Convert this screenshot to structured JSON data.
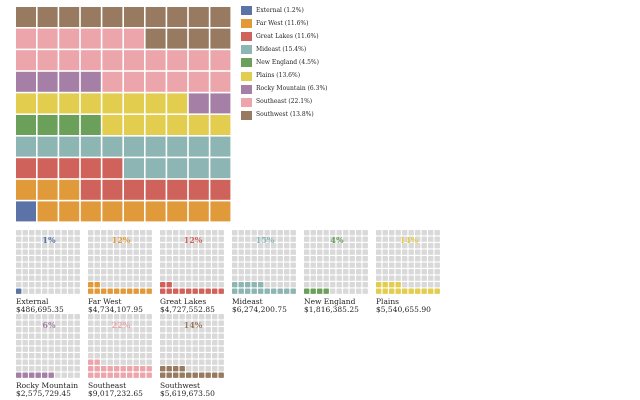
{
  "chart_data": [
    {
      "type": "waffle",
      "grid": [
        10,
        10
      ],
      "categories": [
        "External",
        "Far West",
        "Great Lakes",
        "Mideast",
        "New England",
        "Plains",
        "Rocky Mountain",
        "Southeast",
        "Southwest"
      ],
      "percents": [
        1.2,
        11.6,
        11.6,
        15.4,
        4.5,
        13.6,
        6.3,
        22.1,
        13.8
      ],
      "squares": [
        1,
        12,
        12,
        15,
        4,
        14,
        6,
        22,
        14
      ],
      "colors": [
        "#5b73a6",
        "#e09a3a",
        "#cf635c",
        "#8db5b3",
        "#6ba05a",
        "#e3cd4e",
        "#a57fa6",
        "#eba5ab",
        "#977a5f"
      ],
      "legend": {
        "position": "right",
        "labels": [
          "External (1.2%)",
          "Far West (11.6%)",
          "Great Lakes (11.6%)",
          "Mideast (15.4%)",
          "New England (4.5%)",
          "Plains (13.6%)",
          "Rocky Mountain (6.3%)",
          "Southeast (22.1%)",
          "Southwest (13.8%)"
        ]
      }
    },
    {
      "type": "waffle-small-multiples",
      "grid": [
        10,
        10
      ],
      "empty_color": "#d9d9d9",
      "panels": [
        {
          "name": "External",
          "pct_label": "1%",
          "squares": 1,
          "value_label": "$486,695.35",
          "color": "#5b73a6"
        },
        {
          "name": "Far West",
          "pct_label": "12%",
          "squares": 12,
          "value_label": "$4,734,107.95",
          "color": "#e09a3a"
        },
        {
          "name": "Great Lakes",
          "pct_label": "12%",
          "squares": 12,
          "value_label": "$4,727,552.85",
          "color": "#cf635c"
        },
        {
          "name": "Mideast",
          "pct_label": "15%",
          "squares": 15,
          "value_label": "$6,274,200.75",
          "color": "#8db5b3"
        },
        {
          "name": "New England",
          "pct_label": "4%",
          "squares": 4,
          "value_label": "$1,816,385.25",
          "color": "#6ba05a"
        },
        {
          "name": "Plains",
          "pct_label": "14%",
          "squares": 14,
          "value_label": "$5,540,655.90",
          "color": "#e3cd4e"
        },
        {
          "name": "Rocky Mountain",
          "pct_label": "6%",
          "squares": 6,
          "value_label": "$2,575,729.45",
          "color": "#a57fa6"
        },
        {
          "name": "Southeast",
          "pct_label": "22%",
          "squares": 22,
          "value_label": "$9,017,232.65",
          "color": "#eba5ab"
        },
        {
          "name": "Southwest",
          "pct_label": "14%",
          "squares": 14,
          "value_label": "$5,619,673.50",
          "color": "#977a5f"
        }
      ]
    }
  ]
}
